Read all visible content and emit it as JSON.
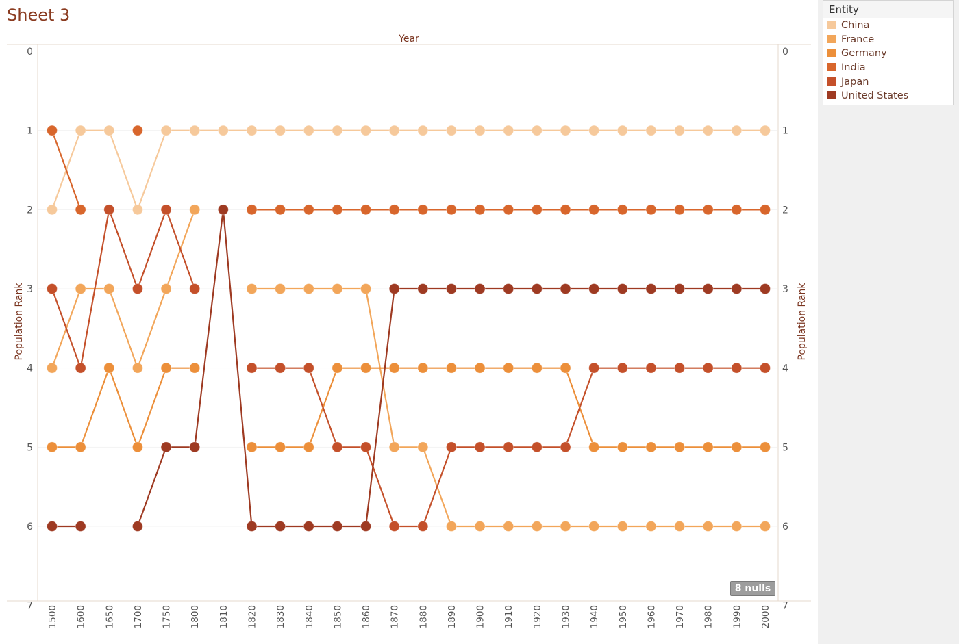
{
  "sheet": {
    "title": "Sheet 3"
  },
  "legend": {
    "title": "Entity",
    "items": [
      {
        "label": "China",
        "color": "#f6c99b"
      },
      {
        "label": "France",
        "color": "#f2a65a"
      },
      {
        "label": "Germany",
        "color": "#ec8f3a"
      },
      {
        "label": "India",
        "color": "#d8662c"
      },
      {
        "label": "Japan",
        "color": "#c4502a"
      },
      {
        "label": "United States",
        "color": "#9e3a22"
      }
    ]
  },
  "nulls_badge": "8 nulls",
  "chart_data": {
    "type": "line",
    "title": "",
    "xlabel": "Year",
    "ylabel": "Population Rank",
    "y_right_label": "Population Rank",
    "categories": [
      "1500",
      "1600",
      "1650",
      "1700",
      "1750",
      "1800",
      "1810",
      "1820",
      "1830",
      "1840",
      "1850",
      "1860",
      "1870",
      "1880",
      "1890",
      "1900",
      "1910",
      "1920",
      "1930",
      "1940",
      "1950",
      "1960",
      "1970",
      "1980",
      "1990",
      "2000"
    ],
    "y_ticks": [
      0,
      1,
      2,
      3,
      4,
      5,
      6,
      7
    ],
    "ylim": [
      0,
      7
    ],
    "y_reversed": true,
    "markers": true,
    "legend_position": "top-right",
    "series": [
      {
        "name": "China",
        "color": "#f6c99b",
        "values": [
          2,
          1,
          1,
          2,
          1,
          1,
          1,
          1,
          1,
          1,
          1,
          1,
          1,
          1,
          1,
          1,
          1,
          1,
          1,
          1,
          1,
          1,
          1,
          1,
          1,
          1
        ]
      },
      {
        "name": "France",
        "color": "#f2a65a",
        "values": [
          4,
          3,
          3,
          4,
          3,
          2,
          null,
          3,
          3,
          3,
          3,
          3,
          5,
          5,
          6,
          6,
          6,
          6,
          6,
          6,
          6,
          6,
          6,
          6,
          6,
          6
        ]
      },
      {
        "name": "Germany",
        "color": "#ec8f3a",
        "values": [
          5,
          5,
          4,
          5,
          4,
          4,
          null,
          5,
          5,
          5,
          4,
          4,
          4,
          4,
          4,
          4,
          4,
          4,
          4,
          5,
          5,
          5,
          5,
          5,
          5,
          5
        ]
      },
      {
        "name": "India",
        "color": "#d8662c",
        "values": [
          1,
          2,
          null,
          1,
          null,
          null,
          null,
          2,
          2,
          2,
          2,
          2,
          2,
          2,
          2,
          2,
          2,
          2,
          2,
          2,
          2,
          2,
          2,
          2,
          2,
          2
        ]
      },
      {
        "name": "Japan",
        "color": "#c4502a",
        "values": [
          3,
          4,
          2,
          3,
          2,
          3,
          null,
          4,
          4,
          4,
          5,
          5,
          6,
          6,
          5,
          5,
          5,
          5,
          5,
          4,
          4,
          4,
          4,
          4,
          4,
          4
        ]
      },
      {
        "name": "United States",
        "color": "#9e3a22",
        "values": [
          6,
          6,
          null,
          6,
          5,
          5,
          2,
          6,
          6,
          6,
          6,
          6,
          3,
          3,
          3,
          3,
          3,
          3,
          3,
          3,
          3,
          3,
          3,
          3,
          3,
          3
        ]
      }
    ]
  }
}
